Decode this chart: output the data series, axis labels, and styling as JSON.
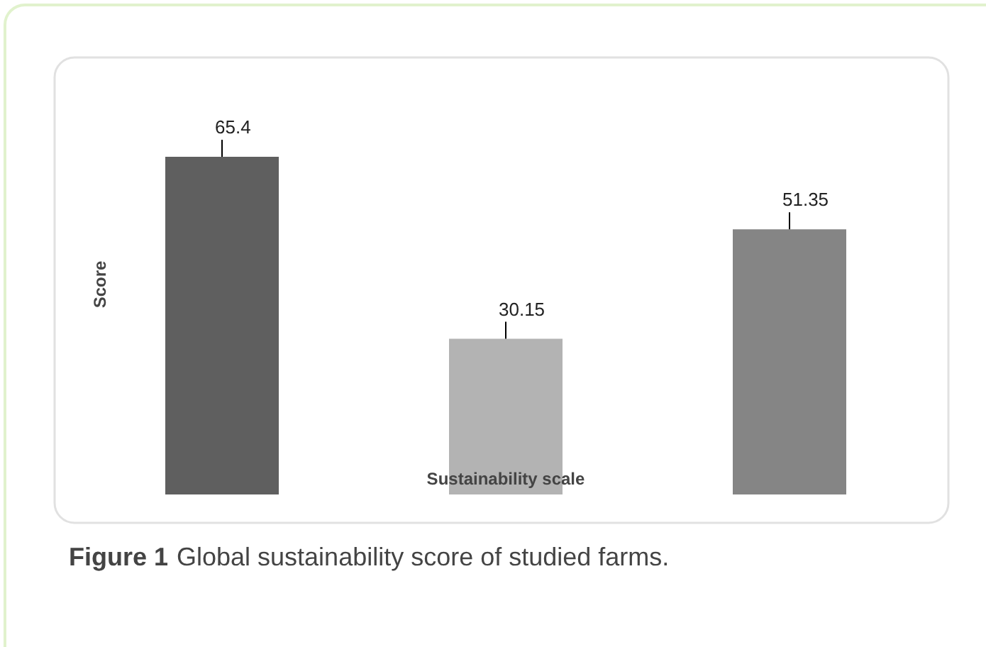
{
  "chart_data": {
    "type": "bar",
    "xlabel": "Sustainability scale",
    "ylabel": "Score",
    "categories": [
      null,
      null,
      null
    ],
    "values": [
      65.4,
      30.15,
      51.35
    ],
    "colors": [
      "#5f5f5f",
      "#b3b3b3",
      "#858585"
    ],
    "data_labels": true,
    "annotations": [
      "Figure 1 Global sustainability score of studied farms."
    ]
  }
}
